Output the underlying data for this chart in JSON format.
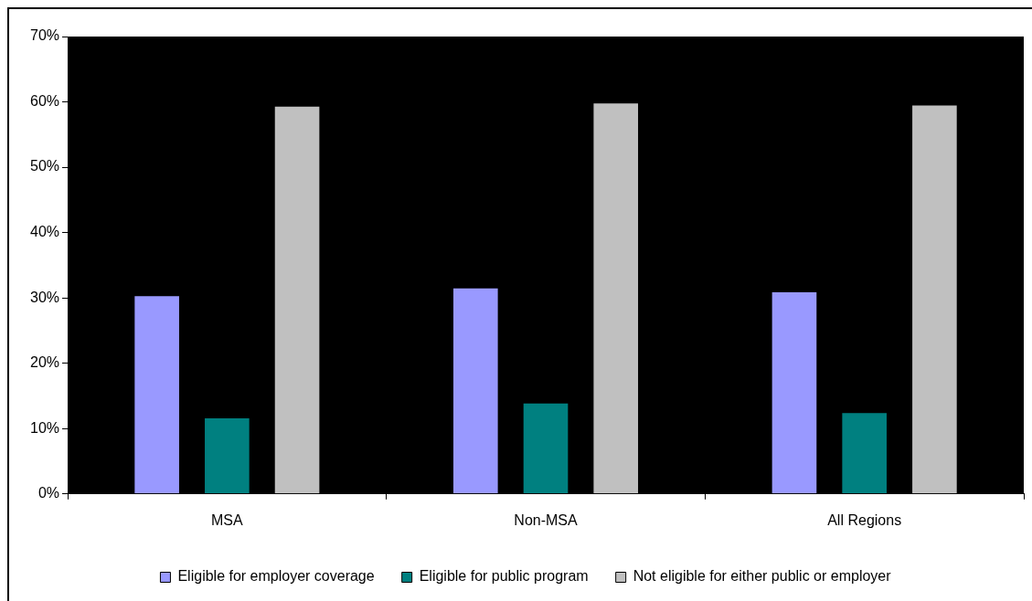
{
  "chart_data": {
    "type": "bar",
    "categories": [
      "MSA",
      "Non-MSA",
      "All Regions"
    ],
    "series": [
      {
        "name": "Eligible for employer coverage",
        "color": "#9999ff",
        "values": [
          30.4,
          31.6,
          31.0
        ]
      },
      {
        "name": "Eligible for public program",
        "color": "#008080",
        "values": [
          11.7,
          14.0,
          12.5
        ]
      },
      {
        "name": "Not eligible for either public or employer",
        "color": "#c0c0c0",
        "values": [
          59.4,
          59.9,
          59.6
        ]
      }
    ],
    "ylim": [
      0,
      70
    ],
    "yticks": [
      {
        "value": 0,
        "label": "0%"
      },
      {
        "value": 10,
        "label": "10%"
      },
      {
        "value": 20,
        "label": "20%"
      },
      {
        "value": 30,
        "label": "30%"
      },
      {
        "value": 40,
        "label": "40%"
      },
      {
        "value": 50,
        "label": "50%"
      },
      {
        "value": 60,
        "label": "60%"
      },
      {
        "value": 70,
        "label": "70%"
      }
    ],
    "grid": false,
    "legend": "bottom"
  }
}
